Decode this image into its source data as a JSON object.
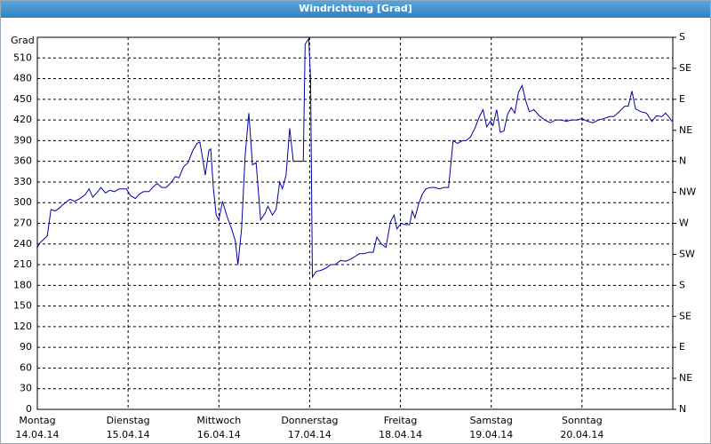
{
  "chart_data": {
    "type": "line",
    "title": "Windrichtung [Grad]",
    "ylabel": "Grad",
    "x": [
      0,
      0.03,
      0.08,
      0.11,
      0.15,
      0.2,
      0.24,
      0.29,
      0.36,
      0.41,
      0.47,
      0.53,
      0.57,
      0.61,
      0.66,
      0.7,
      0.75,
      0.8,
      0.85,
      0.9,
      0.98,
      1.03,
      1.08,
      1.12,
      1.17,
      1.23,
      1.27,
      1.32,
      1.37,
      1.42,
      1.48,
      1.52,
      1.56,
      1.61,
      1.66,
      1.71,
      1.76,
      1.79,
      1.82,
      1.85,
      1.89,
      1.91,
      1.94,
      1.97,
      2.0,
      2.04,
      2.09,
      2.14,
      2.18,
      2.21,
      2.25,
      2.29,
      2.33,
      2.37,
      2.41,
      2.46,
      2.51,
      2.54,
      2.59,
      2.63,
      2.67,
      2.7,
      2.74,
      2.78,
      2.82,
      2.87,
      2.93,
      2.95,
      2.99,
      3.01,
      3.03,
      3.07,
      3.13,
      3.18,
      3.23,
      3.28,
      3.34,
      3.4,
      3.45,
      3.5,
      3.55,
      3.6,
      3.65,
      3.7,
      3.74,
      3.79,
      3.84,
      3.89,
      3.93,
      3.96,
      4.01,
      4.05,
      4.1,
      4.13,
      4.16,
      4.2,
      4.24,
      4.28,
      4.33,
      4.38,
      4.43,
      4.48,
      4.53,
      4.58,
      4.63,
      4.68,
      4.72,
      4.77,
      4.82,
      4.87,
      4.91,
      4.95,
      4.99,
      5.02,
      5.06,
      5.1,
      5.14,
      5.18,
      5.22,
      5.26,
      5.3,
      5.34,
      5.38,
      5.42,
      5.47,
      5.53,
      5.59,
      5.65,
      5.71,
      5.77,
      5.83,
      5.88,
      5.94,
      6.0,
      6.06,
      6.12,
      6.18,
      6.24,
      6.3,
      6.35,
      6.41,
      6.47,
      6.51,
      6.55,
      6.59,
      6.65,
      6.71,
      6.77,
      6.82,
      6.88,
      6.92,
      6.96,
      6.99
    ],
    "series": [
      {
        "color": "#0000aa",
        "values": [
          235,
          242,
          248,
          252,
          290,
          288,
          292,
          298,
          305,
          302,
          306,
          312,
          320,
          308,
          315,
          322,
          314,
          318,
          316,
          320,
          320,
          310,
          306,
          312,
          316,
          316,
          322,
          328,
          322,
          322,
          330,
          338,
          336,
          352,
          358,
          375,
          386,
          388,
          365,
          340,
          376,
          378,
          320,
          282,
          275,
          302,
          280,
          262,
          245,
          210,
          262,
          370,
          430,
          355,
          358,
          275,
          285,
          295,
          282,
          290,
          330,
          320,
          340,
          408,
          360,
          360,
          360,
          530,
          538,
          480,
          192,
          200,
          202,
          205,
          210,
          210,
          216,
          215,
          218,
          222,
          226,
          226,
          228,
          228,
          250,
          240,
          235,
          272,
          282,
          262,
          270,
          268,
          268,
          288,
          278,
          298,
          312,
          320,
          322,
          322,
          320,
          322,
          322,
          390,
          386,
          390,
          390,
          395,
          408,
          425,
          435,
          410,
          418,
          412,
          435,
          402,
          404,
          428,
          438,
          430,
          460,
          470,
          448,
          432,
          435,
          426,
          420,
          416,
          420,
          420,
          418,
          420,
          420,
          422,
          418,
          416,
          420,
          422,
          425,
          425,
          432,
          440,
          440,
          462,
          436,
          432,
          430,
          418,
          426,
          425,
          430,
          424,
          418
        ]
      }
    ],
    "xlim": [
      0,
      7
    ],
    "xticks": [
      {
        "value": 0,
        "label": "Montag"
      },
      {
        "value": 1,
        "label": "Dienstag"
      },
      {
        "value": 2,
        "label": "Mittwoch"
      },
      {
        "value": 3,
        "label": "Donnerstag"
      },
      {
        "value": 4,
        "label": "Freitag"
      },
      {
        "value": 5,
        "label": "Samstag"
      },
      {
        "value": 6,
        "label": "Sonntag"
      }
    ],
    "xtick_dates": [
      "14.04.14",
      "15.04.14",
      "16.04.14",
      "17.04.14",
      "18.04.14",
      "19.04.14",
      "20.04.14"
    ],
    "ylim": [
      0,
      540
    ],
    "yticks": [
      0,
      30,
      60,
      90,
      120,
      150,
      180,
      210,
      240,
      270,
      300,
      330,
      360,
      390,
      420,
      450,
      480,
      510
    ],
    "y2lim": [
      0,
      540
    ],
    "y2ticks": [
      {
        "value": 0,
        "label": "N"
      },
      {
        "value": 45,
        "label": "NE"
      },
      {
        "value": 90,
        "label": "E"
      },
      {
        "value": 135,
        "label": "SE"
      },
      {
        "value": 180,
        "label": "S"
      },
      {
        "value": 225,
        "label": "SW"
      },
      {
        "value": 270,
        "label": "W"
      },
      {
        "value": 315,
        "label": "NW"
      },
      {
        "value": 360,
        "label": "N"
      },
      {
        "value": 405,
        "label": "NE"
      },
      {
        "value": 450,
        "label": "E"
      },
      {
        "value": 495,
        "label": "SE"
      },
      {
        "value": 540,
        "label": "S"
      }
    ],
    "grid": true
  }
}
